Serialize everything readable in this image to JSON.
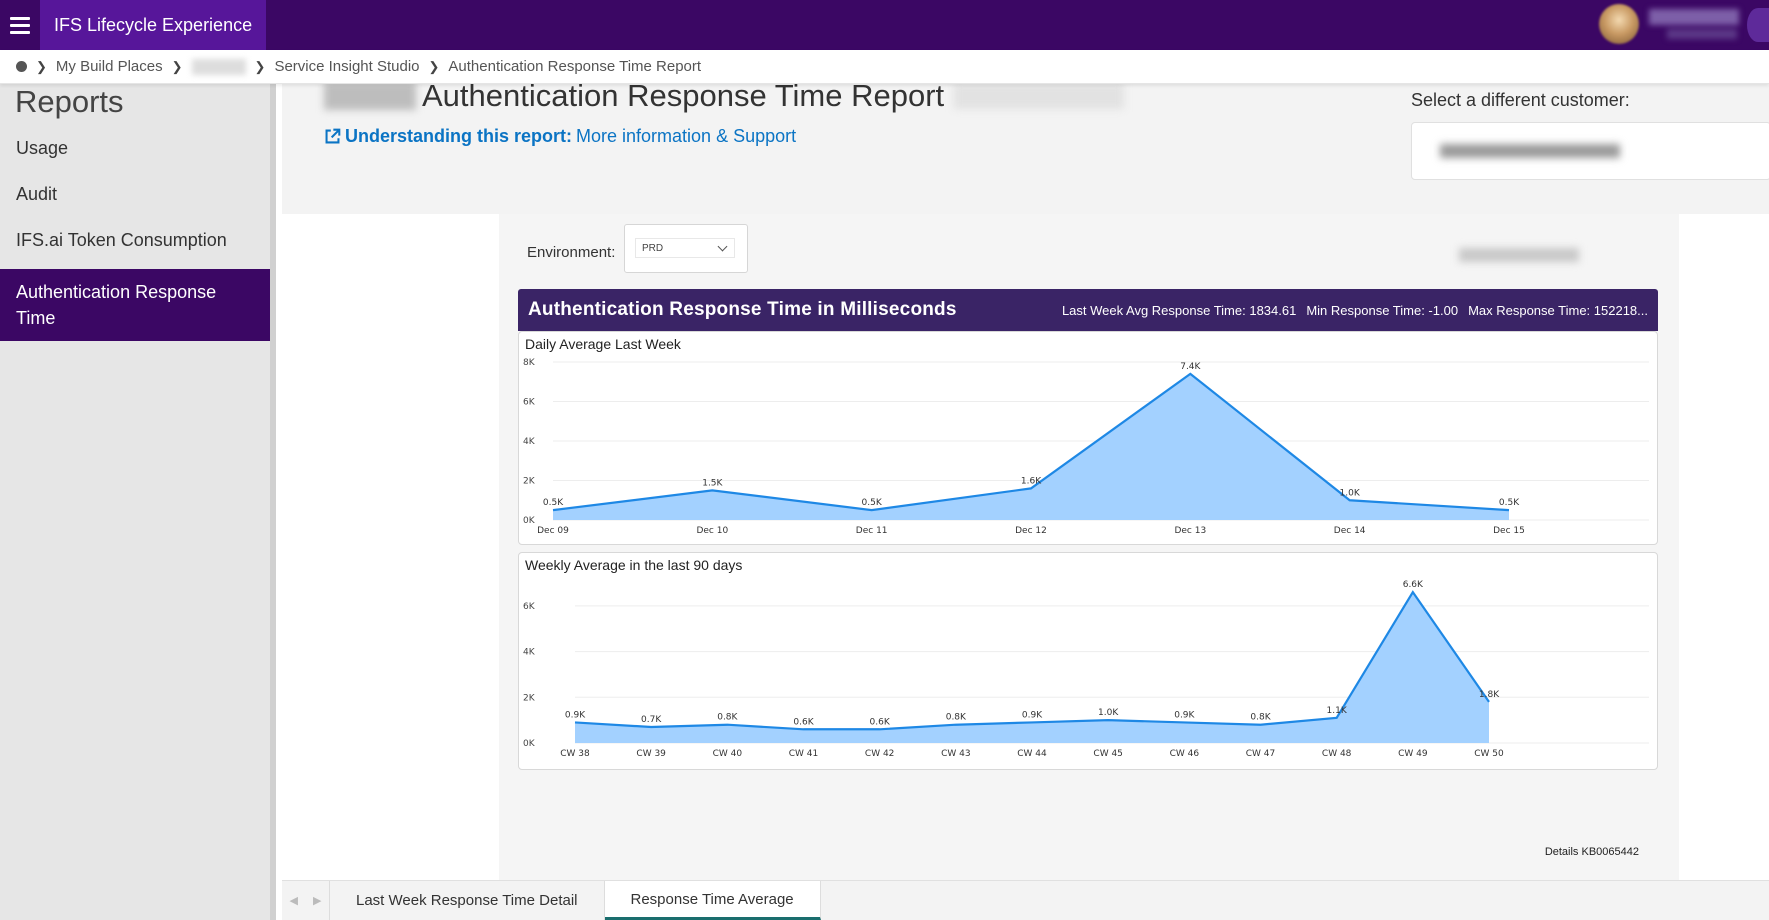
{
  "app": {
    "title": "IFS Lifecycle Experience"
  },
  "user": {
    "name": "",
    "subtitle": ""
  },
  "breadcrumb": {
    "items": [
      "My Build Places",
      "Service Insight Studio",
      "Authentication Response Time Report"
    ]
  },
  "sidebar": {
    "title": "Reports",
    "items": [
      {
        "label": "Usage"
      },
      {
        "label": "Audit"
      },
      {
        "label": "IFS.ai Token Consumption"
      },
      {
        "label": "Authentication Response Time"
      }
    ]
  },
  "header": {
    "title": "Authentication Response Time Report",
    "info_bold": "Understanding this report:",
    "info_link": "More information & Support",
    "customer_label": "Select a different customer:"
  },
  "report": {
    "environment_label": "Environment:",
    "environment_value": "PRD",
    "chart_title": "Authentication Response Time in Milliseconds",
    "stats": {
      "avg": "Last Week Avg Response Time: 1834.61",
      "min": "Min Response Time: -1.00",
      "max": "Max Response Time: 152218..."
    },
    "details": "Details KB0065442"
  },
  "tabs": [
    {
      "label": "Last Week Response Time Detail"
    },
    {
      "label": "Response Time Average"
    }
  ],
  "colors": {
    "brand": "#3b0764",
    "accent": "#57169a",
    "area_fill": "#a3d1ff",
    "line": "#1e88e5",
    "link": "#0b74c4"
  },
  "chart_data": [
    {
      "type": "area",
      "title": "Daily Average Last Week",
      "x": [
        "Dec 09",
        "Dec 10",
        "Dec 11",
        "Dec 12",
        "Dec 13",
        "Dec 14",
        "Dec 15"
      ],
      "values": [
        500,
        1500,
        500,
        1600,
        7400,
        1000,
        500
      ],
      "labels": [
        "0.5K",
        "1.5K",
        "0.5K",
        "1.6K",
        "7.4K",
        "1.0K",
        "0.5K"
      ],
      "yticks": [
        "0K",
        "2K",
        "4K",
        "6K",
        "8K"
      ],
      "ylim": [
        0,
        8000
      ],
      "grid": true
    },
    {
      "type": "area",
      "title": "Weekly Average in the last 90 days",
      "x": [
        "CW 38",
        "CW 39",
        "CW 40",
        "CW 41",
        "CW 42",
        "CW 43",
        "CW 44",
        "CW 45",
        "CW 46",
        "CW 47",
        "CW 48",
        "CW 49",
        "CW 50"
      ],
      "values": [
        900,
        700,
        800,
        600,
        600,
        800,
        900,
        1000,
        900,
        800,
        1100,
        6600,
        1800
      ],
      "labels": [
        "0.9K",
        "0.7K",
        "0.8K",
        "0.6K",
        "0.6K",
        "0.8K",
        "0.9K",
        "1.0K",
        "0.9K",
        "0.8K",
        "1.1K",
        "6.6K",
        "1.8K"
      ],
      "yticks": [
        "0K",
        "2K",
        "4K",
        "6K"
      ],
      "ylim": [
        0,
        7000
      ],
      "grid": true
    }
  ]
}
